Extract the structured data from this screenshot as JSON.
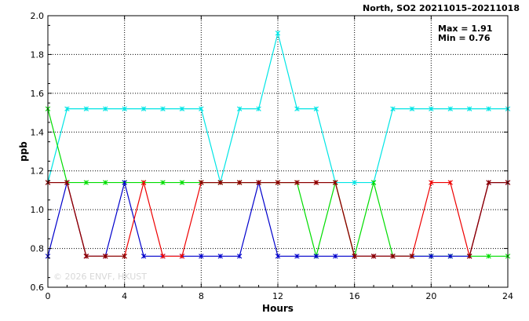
{
  "chart_data": {
    "type": "line",
    "title": "North, SO2 20211015–20211018",
    "xlabel": "Hours",
    "ylabel": "ppb",
    "xlim": [
      0,
      24
    ],
    "ylim": [
      0.6,
      2.0
    ],
    "x_ticks": [
      "0",
      "4",
      "8",
      "12",
      "16",
      "20",
      "24"
    ],
    "y_ticks": [
      "0.6",
      "0.8",
      "1.0",
      "1.2",
      "1.4",
      "1.6",
      "1.8",
      "2.0"
    ],
    "grid": true,
    "stats": {
      "max": "Max = 1.91",
      "min": "Min = 0.76"
    },
    "watermark": "© 2026  ENVF, HKUST",
    "x": [
      0,
      1,
      2,
      3,
      4,
      5,
      6,
      7,
      8,
      9,
      10,
      11,
      12,
      13,
      14,
      15,
      16,
      17,
      18,
      19,
      20,
      21,
      22,
      23,
      24
    ],
    "series": [
      {
        "color": "#00e5e5",
        "values": [
          1.14,
          1.52,
          1.52,
          1.52,
          1.52,
          1.52,
          1.52,
          1.52,
          1.52,
          1.14,
          1.52,
          1.52,
          1.91,
          1.52,
          1.52,
          1.14,
          1.14,
          1.14,
          1.52,
          1.52,
          1.52,
          1.52,
          1.52,
          1.52,
          1.52
        ]
      },
      {
        "color": "#00dd00",
        "values": [
          1.52,
          1.14,
          1.14,
          1.14,
          1.14,
          1.14,
          1.14,
          1.14,
          1.14,
          1.14,
          1.14,
          1.14,
          1.14,
          1.14,
          0.76,
          1.14,
          0.76,
          1.14,
          0.76,
          0.76,
          0.76,
          0.76,
          0.76,
          0.76,
          0.76
        ]
      },
      {
        "color": "#0000cc",
        "values": [
          0.76,
          1.14,
          0.76,
          0.76,
          1.14,
          0.76,
          0.76,
          0.76,
          0.76,
          0.76,
          0.76,
          1.14,
          0.76,
          0.76,
          0.76,
          0.76,
          0.76,
          0.76,
          0.76,
          0.76,
          0.76,
          0.76,
          0.76,
          1.14,
          1.14
        ]
      },
      {
        "color": "#ee0000",
        "values": [
          1.14,
          1.14,
          0.76,
          0.76,
          0.76,
          1.14,
          0.76,
          0.76,
          1.14,
          1.14,
          1.14,
          1.14,
          1.14,
          1.14,
          1.14,
          1.14,
          0.76,
          0.76,
          0.76,
          0.76,
          1.14,
          1.14,
          0.76,
          1.14,
          1.14
        ]
      },
      {
        "color": "#880000",
        "values": [
          1.14,
          1.14,
          0.76,
          0.76,
          0.76,
          null,
          null,
          null,
          1.14,
          1.14,
          1.14,
          1.14,
          1.14,
          1.14,
          1.14,
          1.14,
          0.76,
          0.76,
          0.76,
          0.76,
          null,
          null,
          0.76,
          1.14,
          1.14
        ]
      }
    ]
  }
}
